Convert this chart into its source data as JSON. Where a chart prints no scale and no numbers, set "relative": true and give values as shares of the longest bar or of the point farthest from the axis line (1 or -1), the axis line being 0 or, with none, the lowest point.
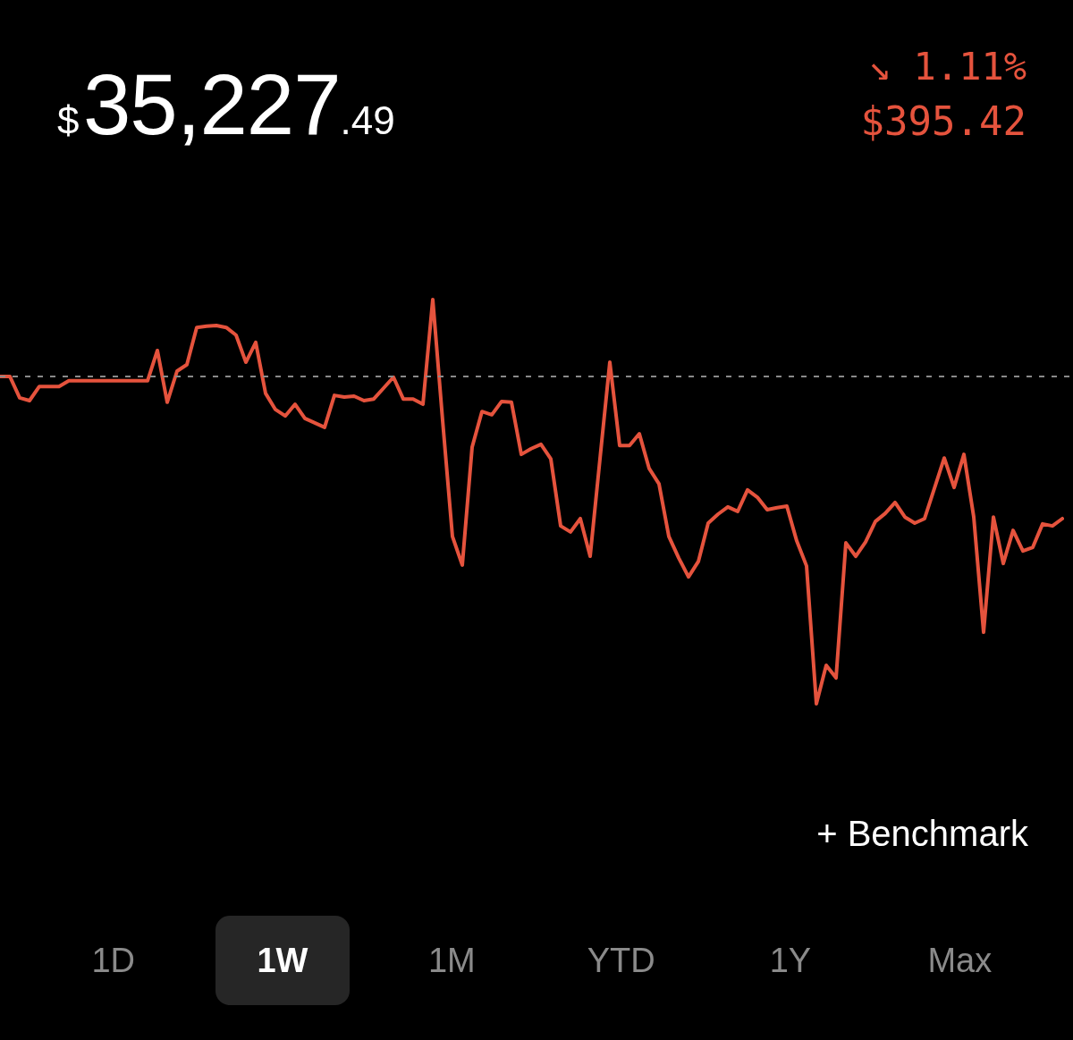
{
  "chart_data": {
    "type": "line",
    "title": "$35,227.49",
    "subtitle": "↘ 1.11%",
    "annotations": [
      "$395.42",
      "+ Benchmark",
      "1D",
      "1W",
      "1M",
      "YTD",
      "1Y",
      "Max"
    ],
    "relative": true,
    "legend": false,
    "marker": "none",
    "line_style": "solid",
    "categories": [
      null,
      null,
      null,
      null,
      null,
      null,
      null,
      null,
      null,
      null,
      null,
      null,
      null,
      null,
      null,
      null,
      null,
      null,
      null,
      null,
      null,
      null,
      null,
      null,
      null,
      null,
      null,
      null,
      null,
      null,
      null,
      null,
      null,
      null,
      null,
      null,
      null,
      null,
      null,
      null,
      null,
      null,
      null,
      null,
      null,
      null,
      null,
      null,
      null,
      null,
      null,
      null,
      null,
      null,
      null,
      null,
      null,
      null,
      null,
      null,
      null,
      null,
      null,
      null,
      null,
      null,
      null,
      null,
      null,
      null,
      null,
      null,
      null,
      null,
      null,
      null,
      null,
      null,
      null,
      null,
      null,
      null,
      null,
      null,
      null,
      null,
      null,
      null,
      null,
      null,
      null,
      null,
      null,
      null,
      null,
      null,
      null,
      null,
      null,
      null,
      null,
      null,
      null,
      null,
      null,
      null,
      null,
      null,
      null
    ],
    "series": [
      {
        "color": "#e5533d",
        "values": [
          0.81,
          0.81,
          0.757,
          0.75,
          0.785,
          0.785,
          0.785,
          0.799,
          0.799,
          0.799,
          0.799,
          0.799,
          0.799,
          0.799,
          0.799,
          0.799,
          0.874,
          0.746,
          0.823,
          0.839,
          0.931,
          0.934,
          0.936,
          0.931,
          0.912,
          0.845,
          0.894,
          0.768,
          0.728,
          0.712,
          0.741,
          0.706,
          0.695,
          0.684,
          0.763,
          0.759,
          0.761,
          0.75,
          0.754,
          0.781,
          0.808,
          0.754,
          0.754,
          0.741,
          1,
          0.701,
          0.414,
          0.343,
          0.635,
          0.723,
          0.715,
          0.748,
          0.746,
          0.617,
          0.631,
          0.642,
          0.606,
          0.44,
          0.425,
          0.458,
          0.365,
          0.606,
          0.845,
          0.639,
          0.639,
          0.668,
          0.582,
          0.544,
          0.414,
          0.361,
          0.314,
          0.352,
          0.447,
          0.469,
          0.487,
          0.476,
          0.529,
          0.511,
          0.48,
          0.485,
          0.489,
          0.403,
          0.341,
          0,
          0.095,
          0.064,
          0.398,
          0.365,
          0.4,
          0.451,
          0.471,
          0.498,
          0.462,
          0.447,
          0.458,
          0.533,
          0.608,
          0.535,
          0.617,
          0.462,
          0.177,
          0.462,
          0.347,
          0.429,
          0.378,
          0.387,
          0.445,
          0.44,
          0.458
        ]
      }
    ],
    "ref_lines": [
      {
        "axis": "y",
        "value": 0.81,
        "color": "#8a8a8a",
        "line_style": "dashed"
      }
    ]
  }
}
